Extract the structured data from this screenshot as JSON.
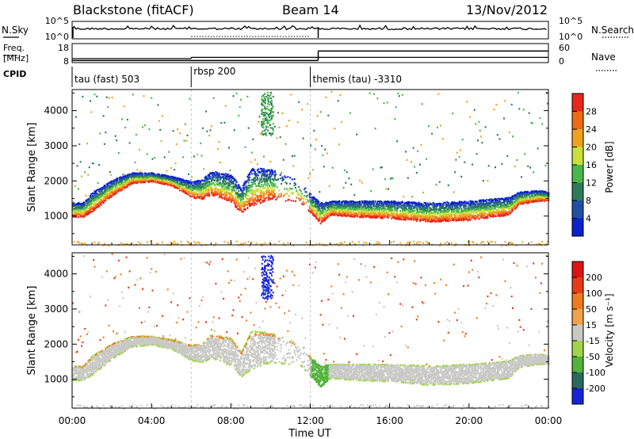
{
  "header": {
    "title": "Blackstone (fitACF)",
    "beam": "Beam 14",
    "date": "13/Nov/2012"
  },
  "labels": {
    "nsky": "N.Sky",
    "nsearch": "N.Search",
    "freq": "Freq.",
    "freq_unit": "[MHz]",
    "nave": "Nave",
    "cpid": "CPID",
    "time_axis": "Time UT",
    "range_axis": "Slant Range [km]",
    "power_bar": "Power [dB]",
    "velocity_bar": "Velocity [m s⁻¹]"
  },
  "noise_panel": {
    "left_ticks": [
      "10^5",
      "10^0"
    ],
    "right_ticks": [
      "10^5",
      "10^0"
    ]
  },
  "freq_panel": {
    "left_ticks": [
      "18",
      "8"
    ],
    "right_ticks": [
      "60",
      "0"
    ],
    "freq_segments": [
      {
        "t0": 0,
        "t1": 6,
        "f": 9.5
      },
      {
        "t0": 6,
        "t1": 12.4,
        "f": 10.3
      },
      {
        "t0": 12.4,
        "t1": 24,
        "f": 10.3
      }
    ],
    "nave_segments": [
      {
        "t0": 0,
        "t1": 12.4,
        "n": 2
      },
      {
        "t0": 12.4,
        "t1": 24,
        "n": 38
      }
    ]
  },
  "cpid_segments": [
    {
      "label": "tau (fast) 503",
      "start": 0
    },
    {
      "label": "rbsp 200",
      "start": 6
    },
    {
      "label": "themis (tau) -3310",
      "start": 12
    }
  ],
  "axes": {
    "time_ticks": [
      "00:00",
      "04:00",
      "08:00",
      "12:00",
      "16:00",
      "20:00",
      "00:00"
    ],
    "time_range_hours": [
      0,
      24
    ],
    "range_ticks": [
      "1000",
      "2000",
      "3000",
      "4000"
    ],
    "range_km": [
      180,
      4600
    ]
  },
  "power_scale": {
    "ticks": [
      "28",
      "24",
      "20",
      "16",
      "12",
      "8",
      "4"
    ],
    "range_db": [
      0,
      32
    ],
    "colors": [
      "#0a22cc",
      "#1f4fa6",
      "#2d7a5a",
      "#49b84a",
      "#c8e03a",
      "#f0a21e",
      "#f06a14",
      "#e8281a"
    ]
  },
  "velocity_scale": {
    "ticks": [
      "200",
      "100",
      "50",
      "15",
      "-15",
      "-50",
      "-100",
      "-200"
    ],
    "range_ms": [
      -250,
      250
    ],
    "colors": [
      "#1525d6",
      "#2a6a5a",
      "#52b23a",
      "#9fd44a",
      "#c8c8c4",
      "#f2a24a",
      "#f07a1e",
      "#e83a14",
      "#e01212"
    ]
  },
  "chart_data": {
    "type": "heatmap",
    "title": "Blackstone (fitACF)",
    "xlabel": "Time UT",
    "ylabel": "Slant Range [km]",
    "xlim": [
      0,
      24
    ],
    "ylim": [
      180,
      4600
    ],
    "scatter_band_lower_km": [
      [
        0,
        1000
      ],
      [
        0.5,
        980
      ],
      [
        1.0,
        1150
      ],
      [
        2.0,
        1600
      ],
      [
        3.0,
        1950
      ],
      [
        4.0,
        2000
      ],
      [
        5.0,
        1880
      ],
      [
        6.0,
        1550
      ],
      [
        6.5,
        1500
      ],
      [
        7.0,
        1620
      ],
      [
        8.0,
        1400
      ],
      [
        8.5,
        1100
      ],
      [
        9.0,
        1300
      ],
      [
        10.0,
        1500
      ],
      [
        11.5,
        1400
      ],
      [
        12.0,
        1100
      ],
      [
        12.5,
        800
      ],
      [
        13.0,
        1050
      ],
      [
        14.0,
        1000
      ],
      [
        16.0,
        950
      ],
      [
        18.0,
        850
      ],
      [
        20.0,
        900
      ],
      [
        22.0,
        1050
      ],
      [
        22.5,
        1350
      ],
      [
        23.5,
        1450
      ],
      [
        24,
        1450
      ]
    ],
    "scatter_band_upper_km": [
      [
        0,
        1400
      ],
      [
        0.5,
        1400
      ],
      [
        1.0,
        1700
      ],
      [
        2.0,
        2050
      ],
      [
        3.0,
        2250
      ],
      [
        4.0,
        2250
      ],
      [
        5.0,
        2150
      ],
      [
        6.0,
        2000
      ],
      [
        6.5,
        2050
      ],
      [
        7.0,
        2300
      ],
      [
        8.0,
        2200
      ],
      [
        8.5,
        1800
      ],
      [
        9.0,
        2400
      ],
      [
        10.0,
        2350
      ],
      [
        11.5,
        2000
      ],
      [
        12.0,
        1650
      ],
      [
        12.5,
        1400
      ],
      [
        13.0,
        1450
      ],
      [
        14.0,
        1450
      ],
      [
        16.0,
        1450
      ],
      [
        18.0,
        1400
      ],
      [
        20.0,
        1450
      ],
      [
        22.0,
        1550
      ],
      [
        22.5,
        1700
      ],
      [
        23.5,
        1750
      ],
      [
        24,
        1700
      ]
    ]
  }
}
